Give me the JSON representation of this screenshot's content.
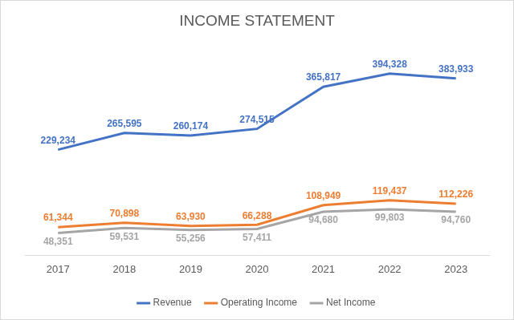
{
  "chart_data": {
    "type": "line",
    "title": "INCOME STATEMENT",
    "categories": [
      "2017",
      "2018",
      "2019",
      "2020",
      "2021",
      "2022",
      "2023"
    ],
    "series": [
      {
        "name": "Revenue",
        "color": "#4472c4",
        "values": [
          229234,
          265595,
          260174,
          274515,
          365817,
          394328,
          383933
        ],
        "value_labels": [
          "229,234",
          "265,595",
          "260,174",
          "274,515",
          "365,817",
          "394,328",
          "383,933"
        ]
      },
      {
        "name": "Operating Income",
        "color": "#ed7d31",
        "values": [
          61344,
          70898,
          63930,
          66288,
          108949,
          119437,
          112226
        ],
        "value_labels": [
          "61,344",
          "70,898",
          "63,930",
          "66,288",
          "108,949",
          "119,437",
          "112,226"
        ]
      },
      {
        "name": "Net Income",
        "color": "#a5a5a5",
        "values": [
          48351,
          59531,
          55256,
          57411,
          94680,
          99803,
          94760
        ],
        "value_labels": [
          "48,351",
          "59,531",
          "55,256",
          "57,411",
          "94,680",
          "99,803",
          "94,760"
        ]
      }
    ],
    "ylim": [
      0,
      450000
    ],
    "yticks": [
      0,
      50000,
      100000,
      150000,
      200000,
      250000,
      300000,
      350000,
      400000,
      450000
    ],
    "grid": false,
    "legend": "bottom",
    "data_labels": true,
    "tick_labels": "x"
  }
}
